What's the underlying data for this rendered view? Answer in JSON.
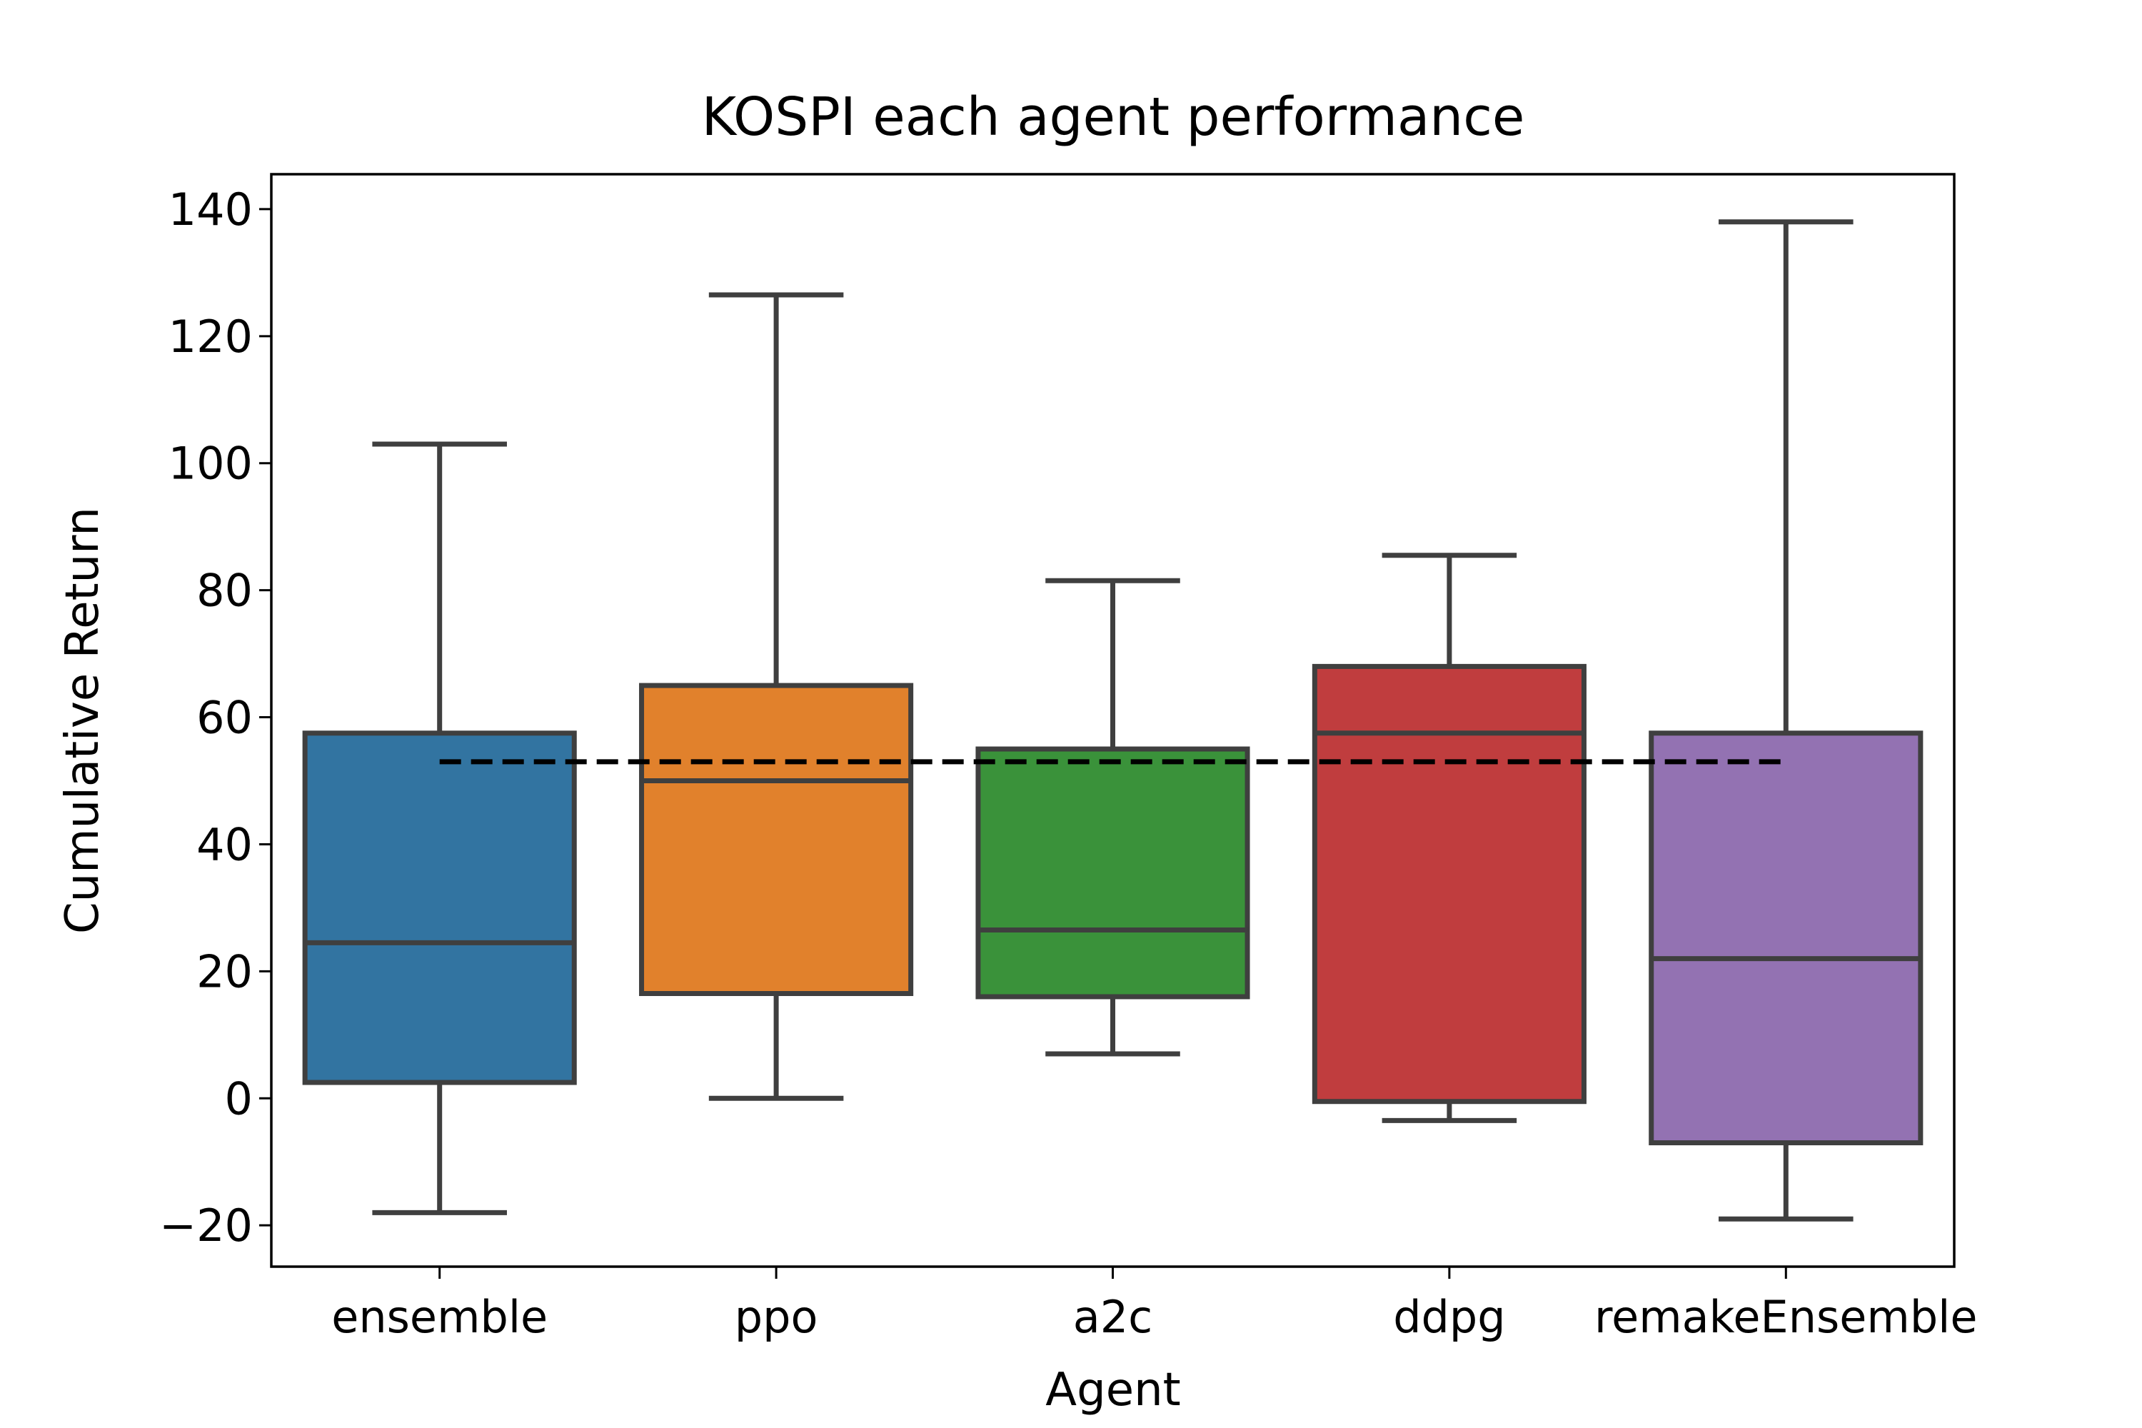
{
  "chart_data": {
    "type": "box",
    "title": "KOSPI each agent performance",
    "xlabel": "Agent",
    "ylabel": "Cumulative Return",
    "ylim": [
      -26.5,
      145.5
    ],
    "yticks": [
      -20,
      0,
      20,
      40,
      60,
      80,
      100,
      120,
      140
    ],
    "ytick_labels": [
      "−20",
      "0",
      "20",
      "40",
      "60",
      "80",
      "100",
      "120",
      "140"
    ],
    "grid": false,
    "legend": "none",
    "categories": [
      "ensemble",
      "ppo",
      "a2c",
      "ddpg",
      "remakeEnsemble"
    ],
    "boxes": [
      {
        "label": "ensemble",
        "whisker_low": -18,
        "q1": 2.5,
        "median": 24.5,
        "q3": 57.5,
        "whisker_high": 103,
        "color": "#3274a1"
      },
      {
        "label": "ppo",
        "whisker_low": 0,
        "q1": 16.5,
        "median": 50,
        "q3": 65,
        "whisker_high": 126.5,
        "color": "#e1812c"
      },
      {
        "label": "a2c",
        "whisker_low": 7,
        "q1": 16,
        "median": 26.5,
        "q3": 55,
        "whisker_high": 81.5,
        "color": "#3a923a"
      },
      {
        "label": "ddpg",
        "whisker_low": -3.5,
        "q1": -0.5,
        "median": 57.5,
        "q3": 68,
        "whisker_high": 85.5,
        "color": "#c03d3e"
      },
      {
        "label": "remakeEnsemble",
        "whisker_low": -19,
        "q1": -7,
        "median": 22,
        "q3": 57.5,
        "whisker_high": 138,
        "color": "#9372b2"
      }
    ],
    "reference_line": {
      "value": 53,
      "style": "dashed",
      "color": "#000000",
      "from_category": "ensemble",
      "to_category": "remakeEnsemble"
    }
  }
}
